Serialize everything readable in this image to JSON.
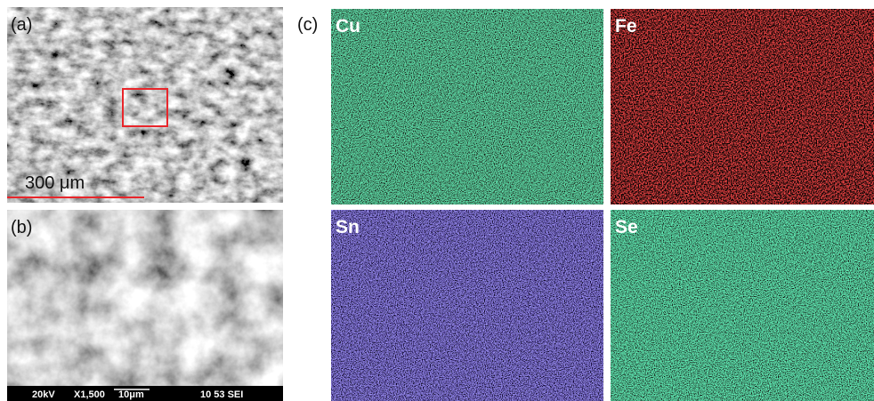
{
  "panels": {
    "a": {
      "label": "(a)",
      "scale_bar": "300 μm"
    },
    "b": {
      "label": "(b)",
      "info_bar": [
        "20kV",
        "X1,500",
        "10μm",
        "10 53 SEI"
      ]
    },
    "c": {
      "label": "(c)",
      "maps": [
        "Cu",
        "Fe",
        "Sn",
        "Se"
      ]
    }
  }
}
